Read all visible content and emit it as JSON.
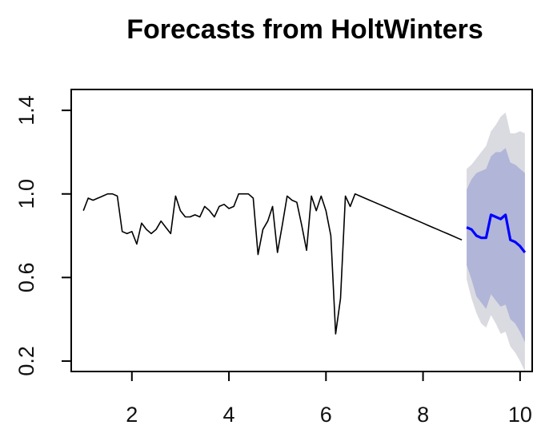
{
  "chart_data": {
    "type": "line",
    "title": "Forecasts from HoltWinters",
    "xlabel": "",
    "ylabel": "",
    "xlim": [
      0.75,
      10.25
    ],
    "ylim": [
      0.15,
      1.5
    ],
    "x_ticks": [
      2,
      4,
      6,
      8,
      10
    ],
    "y_ticks": [
      0.2,
      0.6,
      1.0,
      1.4
    ],
    "y_tick_labels": [
      "0.2",
      "0.6",
      "1.0",
      "1.4"
    ],
    "grid": false,
    "colors": {
      "observed": "#000000",
      "forecast": "#0000ff",
      "band_80": "#b1b5d8",
      "band_95": "#dadae1",
      "axis": "#000000"
    },
    "series": [
      {
        "role": "observed",
        "x": [
          1.0,
          1.1,
          1.2,
          1.3,
          1.4,
          1.5,
          1.6,
          1.7,
          1.8,
          1.9,
          2.0,
          2.1,
          2.2,
          2.3,
          2.4,
          2.5,
          2.6,
          2.7,
          2.8,
          2.9,
          3.0,
          3.1,
          3.2,
          3.3,
          3.4,
          3.5,
          3.6,
          3.7,
          3.8,
          3.9,
          4.0,
          4.1,
          4.2,
          4.3,
          4.4,
          4.5,
          4.6,
          4.7,
          4.8,
          4.9,
          5.0,
          5.1,
          5.2,
          5.3,
          5.4,
          5.5,
          5.6,
          5.7,
          5.8,
          5.9,
          6.0,
          6.1,
          6.2,
          6.3,
          6.4,
          6.5,
          6.6,
          6.7,
          6.8,
          6.9,
          7.0,
          7.1,
          7.2,
          7.3,
          7.4,
          7.5,
          7.6,
          7.7,
          7.8,
          7.9,
          8.0,
          8.1,
          8.2,
          8.3,
          8.4,
          8.5,
          8.6,
          8.7,
          8.8
        ],
        "y": [
          0.92,
          0.98,
          0.97,
          0.98,
          0.99,
          1.0,
          1.0,
          0.99,
          0.82,
          0.81,
          0.82,
          0.76,
          0.86,
          0.83,
          0.81,
          0.83,
          0.87,
          0.84,
          0.81,
          0.99,
          0.92,
          0.89,
          0.89,
          0.9,
          0.89,
          0.94,
          0.92,
          0.89,
          0.94,
          0.95,
          0.93,
          0.94,
          1.0,
          1.0,
          1.0,
          0.98,
          0.71,
          0.83,
          0.87,
          0.94,
          0.72,
          0.85,
          0.99,
          0.97,
          0.96,
          0.85,
          0.73,
          0.99,
          0.92,
          0.99,
          0.92,
          0.8,
          0.33,
          0.5,
          0.99,
          0.94,
          1.0,
          0.99,
          0.98,
          0.97,
          0.96,
          0.95,
          0.94,
          0.93,
          0.92,
          0.91,
          0.9,
          0.89,
          0.88,
          0.87,
          0.86,
          0.85,
          0.84,
          0.83,
          0.82,
          0.81,
          0.8,
          0.79,
          0.78
        ]
      },
      {
        "role": "forecast",
        "x": [
          8.9,
          9.0,
          9.1,
          9.2,
          9.3,
          9.4,
          9.5,
          9.6,
          9.7,
          9.8,
          9.9,
          10.0,
          10.1
        ],
        "y": [
          0.84,
          0.83,
          0.8,
          0.79,
          0.79,
          0.9,
          0.89,
          0.88,
          0.9,
          0.78,
          0.77,
          0.75,
          0.72
        ],
        "lo80": [
          0.66,
          0.59,
          0.51,
          0.48,
          0.45,
          0.52,
          0.49,
          0.46,
          0.47,
          0.4,
          0.38,
          0.34,
          0.29
        ],
        "hi80": [
          1.02,
          1.07,
          1.1,
          1.11,
          1.12,
          1.18,
          1.2,
          1.2,
          1.22,
          1.15,
          1.14,
          1.12,
          1.1
        ],
        "lo95": [
          0.59,
          0.5,
          0.43,
          0.38,
          0.36,
          0.42,
          0.38,
          0.33,
          0.34,
          0.27,
          0.24,
          0.2,
          0.15
        ],
        "hi95": [
          1.12,
          1.14,
          1.17,
          1.2,
          1.23,
          1.3,
          1.33,
          1.37,
          1.39,
          1.29,
          1.29,
          1.3,
          1.29
        ]
      }
    ]
  }
}
